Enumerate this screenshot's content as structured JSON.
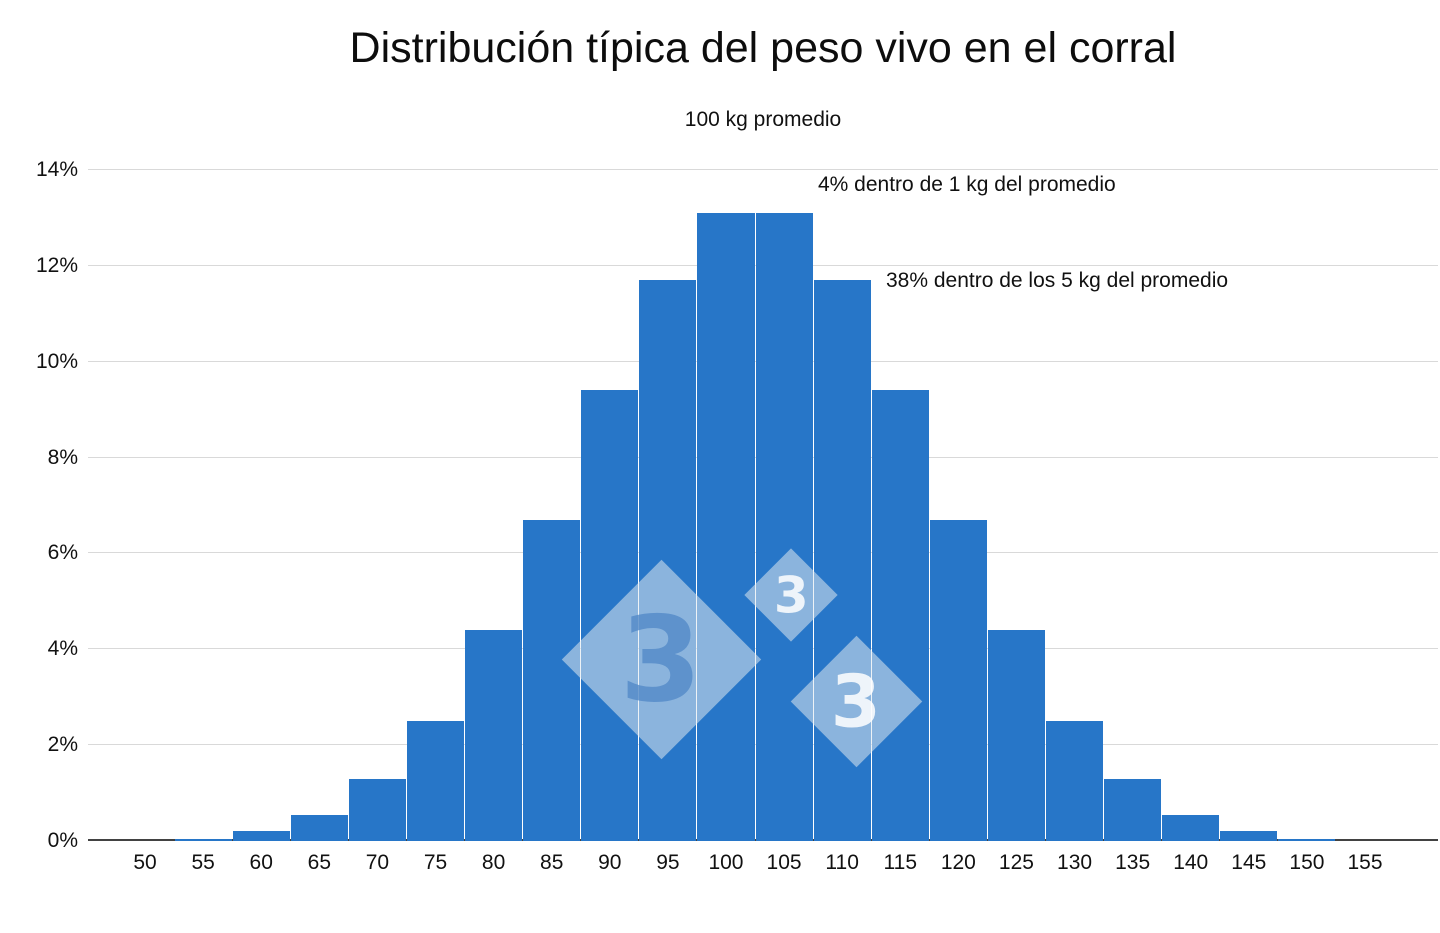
{
  "page": {
    "background": "#ffffff"
  },
  "chart_data": {
    "type": "bar",
    "title": "Distribución típica del peso vivo en el corral",
    "subtitle": "100 kg promedio",
    "annotations": [
      {
        "text": "4% dentro de 1 kg del promedio"
      },
      {
        "text": "38% dentro de los 5 kg del promedio"
      }
    ],
    "xlabel": "",
    "ylabel": "",
    "categories": [
      50,
      55,
      60,
      65,
      70,
      75,
      80,
      85,
      90,
      95,
      100,
      105,
      110,
      115,
      120,
      125,
      130,
      135,
      140,
      145,
      150,
      155
    ],
    "values": [
      0,
      0.05,
      0.2,
      0.55,
      1.3,
      2.5,
      4.4,
      6.7,
      9.4,
      11.7,
      13.1,
      13.1,
      11.7,
      9.4,
      6.7,
      4.4,
      2.5,
      1.3,
      0.55,
      0.2,
      0.05,
      0
    ],
    "ylim": [
      0,
      14
    ],
    "yticks": [
      {
        "value": 0,
        "label": "0%"
      },
      {
        "value": 2,
        "label": "2%"
      },
      {
        "value": 4,
        "label": "4%"
      },
      {
        "value": 6,
        "label": "6%"
      },
      {
        "value": 8,
        "label": "8%"
      },
      {
        "value": 10,
        "label": "10%"
      },
      {
        "value": 12,
        "label": "12%"
      },
      {
        "value": 14,
        "label": "14%"
      }
    ],
    "bar_color": "#2776c8",
    "grid_color": "#d9d9d9",
    "axis_color": "#424242",
    "legend": "none",
    "grid": "horizontal",
    "watermark_glyph": "3"
  }
}
